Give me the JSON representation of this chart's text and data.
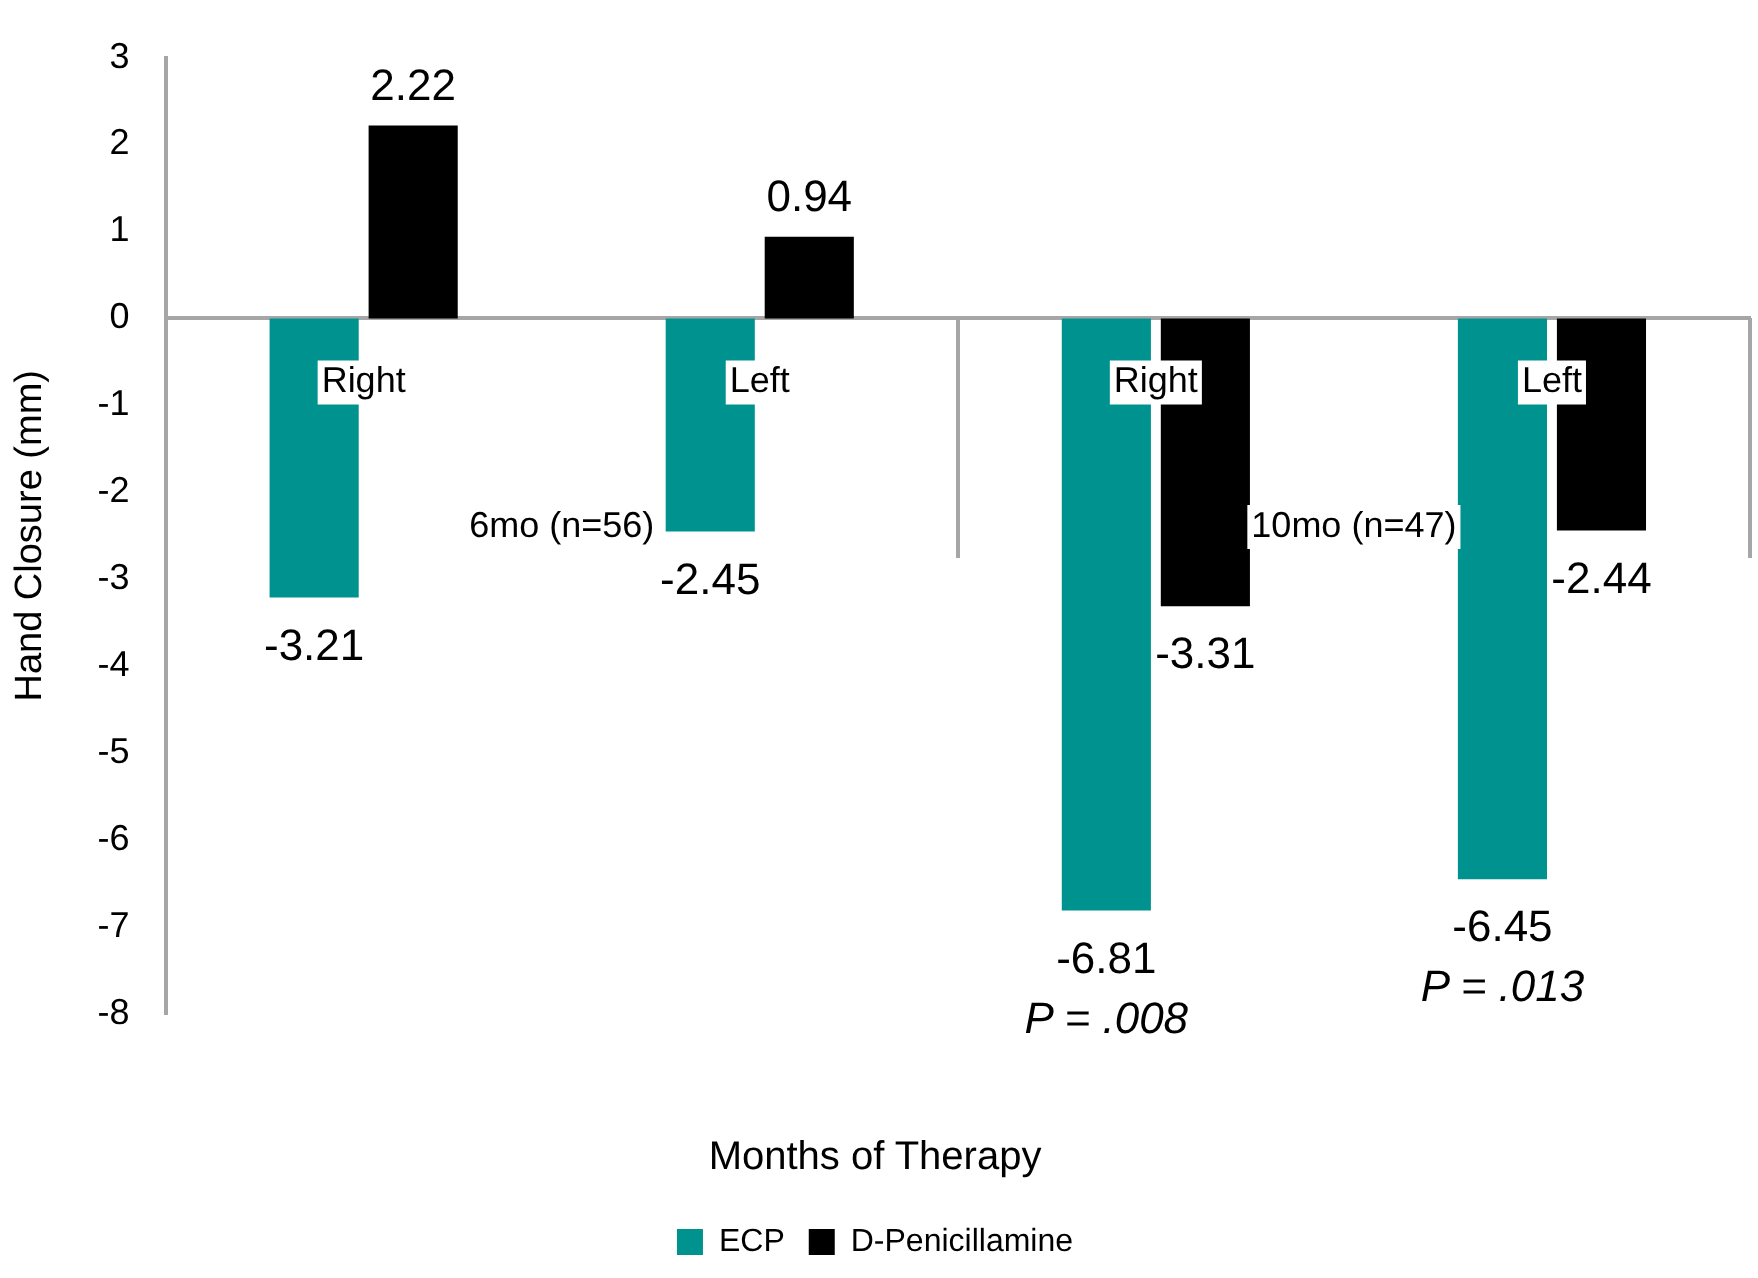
{
  "chart_data": {
    "type": "bar",
    "xlabel": "Months of Therapy",
    "ylabel": "Hand Closure (mm)",
    "categories": [
      "Right",
      "Left",
      "Right",
      "Left"
    ],
    "series": [
      {
        "name": "ECP",
        "color": "#00928f",
        "values": [
          -3.21,
          -2.45,
          -6.81,
          -6.45
        ]
      },
      {
        "name": "D-Penicillamine",
        "color": "#000000",
        "values": [
          2.22,
          0.94,
          -3.31,
          -2.44
        ]
      }
    ],
    "ylim": [
      -8,
      3
    ],
    "yticks": [
      -8,
      -7,
      -6,
      -5,
      -4,
      -3,
      -2,
      -1,
      0,
      1,
      2,
      3
    ],
    "grid": false,
    "legend": "bottom",
    "data_labels": true,
    "annotations": [
      "6mo (n=56)",
      "10mo (n=47)",
      "P = .008",
      "P = .013"
    ]
  }
}
